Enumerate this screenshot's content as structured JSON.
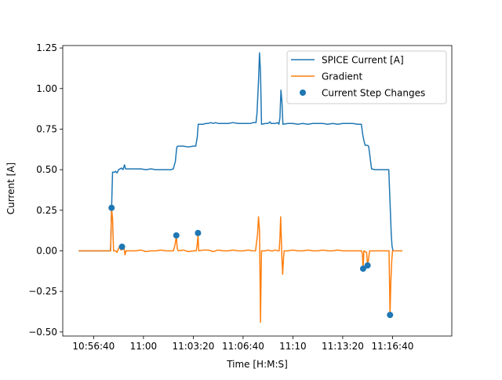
{
  "chart_data": {
    "type": "line",
    "title": "",
    "xlabel": "Time [H:M:S]",
    "ylabel": "Current [A]",
    "xlim_seconds": [
      -124,
      1438
    ],
    "ylim": [
      -0.525,
      1.265
    ],
    "x_axis_time_origin": "10:56:40",
    "x_ticks": [
      {
        "t": 0,
        "label": "10:56:40"
      },
      {
        "t": 200,
        "label": "11:00"
      },
      {
        "t": 400,
        "label": "11:03:20"
      },
      {
        "t": 600,
        "label": "11:06:40"
      },
      {
        "t": 800,
        "label": "11:10"
      },
      {
        "t": 1000,
        "label": "11:13:20"
      },
      {
        "t": 1200,
        "label": "11:16:40"
      }
    ],
    "y_ticks": [
      {
        "v": 1.25,
        "label": "1.25"
      },
      {
        "v": 1.0,
        "label": "1.00"
      },
      {
        "v": 0.75,
        "label": "0.75"
      },
      {
        "v": 0.5,
        "label": "0.50"
      },
      {
        "v": 0.25,
        "label": "0.25"
      },
      {
        "v": 0.0,
        "label": "0.00"
      },
      {
        "v": -0.25,
        "label": "−0.25"
      },
      {
        "v": -0.5,
        "label": "−0.50"
      }
    ],
    "legend_position": "top-right",
    "grid": false,
    "series": [
      {
        "name": "SPICE Current [A]",
        "kind": "line",
        "color": "#1f77b4",
        "points": [
          [
            -60,
            0.0
          ],
          [
            -50,
            0.0
          ],
          [
            -40,
            0.0
          ],
          [
            -30,
            0.0
          ],
          [
            -20,
            0.0
          ],
          [
            -10,
            0.0
          ],
          [
            0,
            0.0
          ],
          [
            10,
            0.0
          ],
          [
            20,
            0.0
          ],
          [
            30,
            0.0
          ],
          [
            40,
            0.0
          ],
          [
            50,
            0.0
          ],
          [
            60,
            0.0
          ],
          [
            68,
            0.0
          ],
          [
            72,
            0.26
          ],
          [
            76,
            0.485
          ],
          [
            84,
            0.485
          ],
          [
            88,
            0.49
          ],
          [
            94,
            0.48
          ],
          [
            100,
            0.5
          ],
          [
            106,
            0.505
          ],
          [
            112,
            0.51
          ],
          [
            118,
            0.5
          ],
          [
            124,
            0.53
          ],
          [
            128,
            0.505
          ],
          [
            134,
            0.505
          ],
          [
            150,
            0.505
          ],
          [
            170,
            0.505
          ],
          [
            190,
            0.505
          ],
          [
            210,
            0.5
          ],
          [
            230,
            0.505
          ],
          [
            250,
            0.5
          ],
          [
            270,
            0.5
          ],
          [
            290,
            0.5
          ],
          [
            310,
            0.5
          ],
          [
            320,
            0.505
          ],
          [
            328,
            0.55
          ],
          [
            334,
            0.64
          ],
          [
            340,
            0.645
          ],
          [
            360,
            0.645
          ],
          [
            380,
            0.64
          ],
          [
            400,
            0.645
          ],
          [
            410,
            0.645
          ],
          [
            416,
            0.7
          ],
          [
            420,
            0.78
          ],
          [
            430,
            0.78
          ],
          [
            440,
            0.78
          ],
          [
            450,
            0.785
          ],
          [
            460,
            0.785
          ],
          [
            470,
            0.79
          ],
          [
            480,
            0.785
          ],
          [
            490,
            0.79
          ],
          [
            500,
            0.785
          ],
          [
            520,
            0.785
          ],
          [
            540,
            0.785
          ],
          [
            560,
            0.79
          ],
          [
            580,
            0.785
          ],
          [
            600,
            0.785
          ],
          [
            620,
            0.785
          ],
          [
            630,
            0.785
          ],
          [
            640,
            0.79
          ],
          [
            645,
            0.79
          ],
          [
            652,
            0.79
          ],
          [
            656,
            0.85
          ],
          [
            662,
            1.05
          ],
          [
            666,
            1.22
          ],
          [
            670,
            1.1
          ],
          [
            674,
            0.78
          ],
          [
            690,
            0.785
          ],
          [
            700,
            0.785
          ],
          [
            708,
            0.795
          ],
          [
            712,
            0.785
          ],
          [
            720,
            0.785
          ],
          [
            730,
            0.785
          ],
          [
            738,
            0.79
          ],
          [
            744,
            0.78
          ],
          [
            748,
            0.82
          ],
          [
            752,
            0.99
          ],
          [
            756,
            0.92
          ],
          [
            760,
            0.78
          ],
          [
            780,
            0.785
          ],
          [
            800,
            0.785
          ],
          [
            820,
            0.78
          ],
          [
            840,
            0.785
          ],
          [
            860,
            0.78
          ],
          [
            880,
            0.785
          ],
          [
            900,
            0.785
          ],
          [
            920,
            0.785
          ],
          [
            940,
            0.78
          ],
          [
            960,
            0.785
          ],
          [
            980,
            0.78
          ],
          [
            1000,
            0.785
          ],
          [
            1020,
            0.785
          ],
          [
            1040,
            0.785
          ],
          [
            1060,
            0.78
          ],
          [
            1075,
            0.78
          ],
          [
            1080,
            0.72
          ],
          [
            1085,
            0.68
          ],
          [
            1090,
            0.65
          ],
          [
            1100,
            0.65
          ],
          [
            1104,
            0.645
          ],
          [
            1108,
            0.6
          ],
          [
            1112,
            0.55
          ],
          [
            1116,
            0.505
          ],
          [
            1130,
            0.5
          ],
          [
            1150,
            0.5
          ],
          [
            1170,
            0.5
          ],
          [
            1185,
            0.5
          ],
          [
            1190,
            0.3
          ],
          [
            1195,
            0.1
          ],
          [
            1198,
            0.03
          ],
          [
            1202,
            0.0
          ]
        ]
      },
      {
        "name": "Gradient",
        "kind": "line",
        "color": "#ff7f0e",
        "points": [
          [
            -60,
            0.0
          ],
          [
            -40,
            0.0
          ],
          [
            -20,
            0.0
          ],
          [
            0,
            0.0
          ],
          [
            20,
            0.0
          ],
          [
            40,
            0.0
          ],
          [
            60,
            0.0
          ],
          [
            68,
            0.0
          ],
          [
            72,
            0.26
          ],
          [
            76,
            0.2
          ],
          [
            80,
            0.0
          ],
          [
            88,
            0.0
          ],
          [
            94,
            -0.01
          ],
          [
            100,
            0.015
          ],
          [
            104,
            0.025
          ],
          [
            110,
            0.005
          ],
          [
            118,
            0.01
          ],
          [
            122,
            0.02
          ],
          [
            126,
            -0.025
          ],
          [
            130,
            0.0
          ],
          [
            150,
            0.0
          ],
          [
            170,
            0.0
          ],
          [
            190,
            0.005
          ],
          [
            210,
            -0.005
          ],
          [
            230,
            0.0
          ],
          [
            250,
            0.0
          ],
          [
            270,
            0.005
          ],
          [
            290,
            0.0
          ],
          [
            310,
            0.0
          ],
          [
            320,
            0.0
          ],
          [
            326,
            0.03
          ],
          [
            332,
            0.09
          ],
          [
            336,
            0.01
          ],
          [
            340,
            0.0
          ],
          [
            360,
            0.005
          ],
          [
            380,
            -0.005
          ],
          [
            400,
            0.0
          ],
          [
            412,
            0.0
          ],
          [
            416,
            0.04
          ],
          [
            419,
            0.1
          ],
          [
            422,
            0.0
          ],
          [
            440,
            0.005
          ],
          [
            460,
            0.005
          ],
          [
            480,
            -0.005
          ],
          [
            500,
            0.005
          ],
          [
            520,
            0.0
          ],
          [
            540,
            0.0
          ],
          [
            560,
            0.005
          ],
          [
            580,
            0.0
          ],
          [
            600,
            0.0
          ],
          [
            620,
            0.005
          ],
          [
            640,
            0.0
          ],
          [
            650,
            0.0
          ],
          [
            654,
            0.05
          ],
          [
            658,
            0.1
          ],
          [
            662,
            0.21
          ],
          [
            666,
            0.12
          ],
          [
            668,
            -0.15
          ],
          [
            670,
            -0.44
          ],
          [
            672,
            -0.2
          ],
          [
            674,
            0.0
          ],
          [
            690,
            0.0
          ],
          [
            700,
            0.005
          ],
          [
            710,
            0.0
          ],
          [
            720,
            0.0
          ],
          [
            730,
            0.005
          ],
          [
            740,
            0.0
          ],
          [
            745,
            0.0
          ],
          [
            748,
            0.08
          ],
          [
            751,
            0.21
          ],
          [
            754,
            0.05
          ],
          [
            756,
            -0.05
          ],
          [
            759,
            -0.145
          ],
          [
            762,
            -0.05
          ],
          [
            765,
            0.0
          ],
          [
            780,
            0.0
          ],
          [
            800,
            0.005
          ],
          [
            820,
            0.0
          ],
          [
            840,
            0.0
          ],
          [
            860,
            0.005
          ],
          [
            880,
            0.0
          ],
          [
            900,
            0.0
          ],
          [
            920,
            0.005
          ],
          [
            940,
            0.0
          ],
          [
            960,
            0.0
          ],
          [
            980,
            0.005
          ],
          [
            1000,
            0.0
          ],
          [
            1020,
            0.0
          ],
          [
            1040,
            0.0
          ],
          [
            1060,
            0.0
          ],
          [
            1076,
            0.0
          ],
          [
            1079,
            -0.02
          ],
          [
            1082,
            -0.11
          ],
          [
            1085,
            0.0
          ],
          [
            1090,
            -0.005
          ],
          [
            1096,
            -0.01
          ],
          [
            1100,
            -0.09
          ],
          [
            1104,
            -0.05
          ],
          [
            1108,
            0.0
          ],
          [
            1120,
            0.0
          ],
          [
            1140,
            0.0
          ],
          [
            1160,
            0.0
          ],
          [
            1180,
            0.0
          ],
          [
            1186,
            0.0
          ],
          [
            1188,
            -0.2
          ],
          [
            1190,
            -0.395
          ],
          [
            1193,
            -0.2
          ],
          [
            1197,
            -0.06
          ],
          [
            1200,
            0.0
          ],
          [
            1220,
            0.0
          ],
          [
            1240,
            0.0
          ]
        ]
      },
      {
        "name": "Current Step Changes",
        "kind": "scatter",
        "color": "#1f77b4",
        "points": [
          [
            72,
            0.265
          ],
          [
            114,
            0.025
          ],
          [
            332,
            0.095
          ],
          [
            419,
            0.11
          ],
          [
            1082,
            -0.11
          ],
          [
            1100,
            -0.09
          ],
          [
            1190,
            -0.395
          ]
        ]
      }
    ]
  }
}
